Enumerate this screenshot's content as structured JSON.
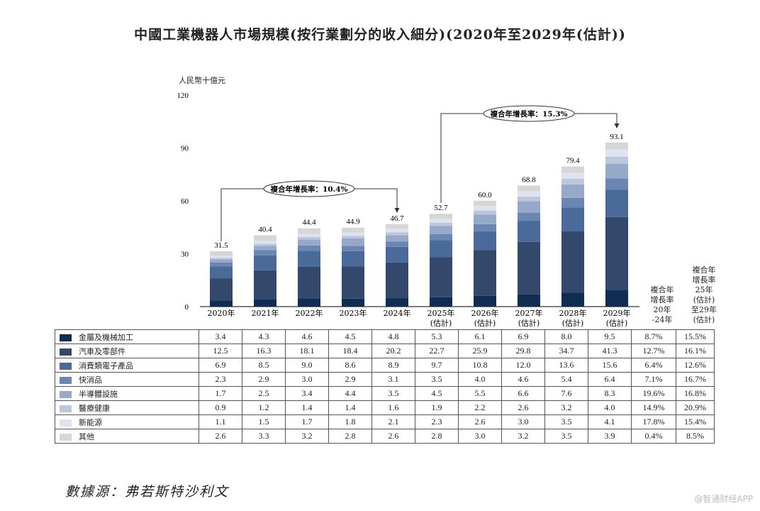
{
  "title": "中國工業機器人市場規模(按行業劃分的收入細分)(2020年至2029年(估計))",
  "source": "數據源：弗若斯特沙利文",
  "watermark": "@智通财经APP",
  "chart_data": {
    "type": "bar",
    "stacked": true,
    "ylabel": "人民幣十億元",
    "ylim": [
      0,
      120
    ],
    "yticks": [
      "0",
      "30",
      "60",
      "90",
      "120"
    ],
    "categories": [
      "2020年",
      "2021年",
      "2022年",
      "2023年",
      "2024年",
      "2025年\n(估計)",
      "2026年\n(估計)",
      "2027年\n(估計)",
      "2028年\n(估計)",
      "2029年\n(估計)"
    ],
    "totals": [
      "31.5",
      "40.4",
      "44.4",
      "44.9",
      "46.7",
      "52.7",
      "60.0",
      "68.8",
      "79.4",
      "93.1"
    ],
    "series": [
      {
        "name": "金屬及機械加工",
        "color": "#0f2d52",
        "values": [
          3.4,
          4.3,
          4.6,
          4.5,
          4.8,
          5.3,
          6.1,
          6.9,
          8.0,
          9.5
        ],
        "cagr_20_24": "8.7%",
        "cagr_25_29": "15.5%"
      },
      {
        "name": "汽車及零部件",
        "color": "#33486a",
        "values": [
          12.5,
          16.3,
          18.1,
          18.4,
          20.2,
          22.7,
          25.9,
          29.8,
          34.7,
          41.3
        ],
        "cagr_20_24": "12.7%",
        "cagr_25_29": "16.1%"
      },
      {
        "name": "消費類電子產品",
        "color": "#4a6a99",
        "values": [
          6.9,
          8.5,
          9.0,
          8.6,
          8.9,
          9.7,
          10.8,
          12.0,
          13.6,
          15.6
        ],
        "cagr_20_24": "6.4%",
        "cagr_25_29": "12.6%"
      },
      {
        "name": "快消品",
        "color": "#6a86b3",
        "values": [
          2.3,
          2.9,
          3.0,
          2.9,
          3.1,
          3.5,
          4.0,
          4.6,
          5.4,
          6.4
        ],
        "cagr_20_24": "7.1%",
        "cagr_25_29": "16.7%"
      },
      {
        "name": "半導體設施",
        "color": "#97a9c9",
        "values": [
          1.7,
          2.5,
          3.4,
          4.4,
          3.5,
          4.5,
          5.5,
          6.6,
          7.6,
          8.3
        ],
        "cagr_20_24": "19.6%",
        "cagr_25_29": "16.8%"
      },
      {
        "name": "醫療健康",
        "color": "#bcc6dd",
        "values": [
          0.9,
          1.2,
          1.4,
          1.4,
          1.6,
          1.9,
          2.2,
          2.6,
          3.2,
          4.0
        ],
        "cagr_20_24": "14.9%",
        "cagr_25_29": "20.9%"
      },
      {
        "name": "新能源",
        "color": "#dde3ef",
        "values": [
          1.1,
          1.5,
          1.7,
          1.8,
          2.1,
          2.3,
          2.6,
          3.0,
          3.5,
          4.1
        ],
        "cagr_20_24": "17.8%",
        "cagr_25_29": "15.4%"
      },
      {
        "name": "其他",
        "color": "#d6d6d6",
        "values": [
          2.6,
          3.3,
          3.2,
          2.8,
          2.6,
          2.8,
          3.0,
          3.2,
          3.5,
          3.9
        ],
        "cagr_20_24": "0.4%",
        "cagr_25_29": "8.5%"
      }
    ],
    "cagr_header_1": "複合年\n增長率\n20年\n-24年",
    "cagr_header_2": "複合年\n增長率\n25年\n(估計)\n至29年\n(估計)",
    "annotations": [
      {
        "text": "複合年增長率：10.4%",
        "from": "2020年",
        "to": "2024年"
      },
      {
        "text": "複合年增長率：15.3%",
        "from": "2025年",
        "to": "2029年"
      }
    ],
    "grid": false,
    "legend": "table-below"
  }
}
